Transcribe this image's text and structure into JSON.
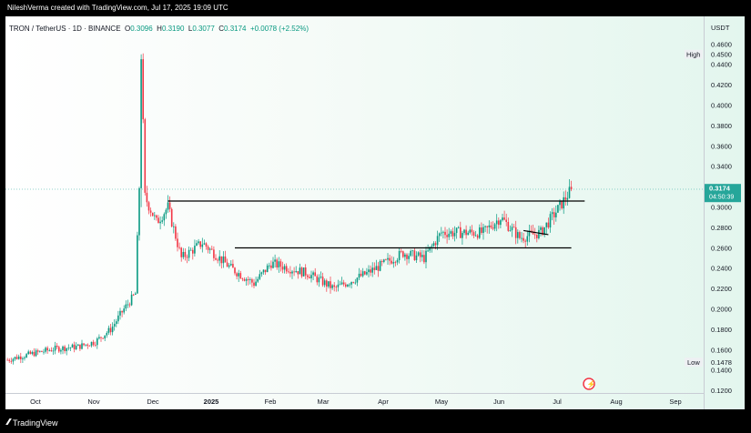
{
  "header": {
    "credit": "NileshVerma created with TradingView.com, Jul 17, 2025 19:09 UTC"
  },
  "legend": {
    "symbol": "TRON / TetherUS · 1D · BINANCE",
    "open_label": "O",
    "open": "0.3096",
    "high_label": "H",
    "high": "0.3190",
    "low_label": "L",
    "low": "0.3077",
    "close_label": "C",
    "close": "0.3174",
    "change": "+0.0078 (+2.52%)"
  },
  "price_axis": {
    "unit": "USDT",
    "ticks": [
      "0.4600",
      "0.4400",
      "0.4200",
      "0.4000",
      "0.3800",
      "0.3600",
      "0.3400",
      "0.3200",
      "0.3000",
      "0.2800",
      "0.2600",
      "0.2400",
      "0.2200",
      "0.2000",
      "0.1800",
      "0.1600",
      "0.1400",
      "0.1200"
    ],
    "high_label": "High",
    "high_value": "0.4500",
    "low_label": "Low",
    "low_value": "0.1478",
    "last_price": "0.3174",
    "countdown": "04:50:39"
  },
  "time_axis": {
    "ticks": [
      "Oct",
      "Nov",
      "Dec",
      "2025",
      "Feb",
      "Mar",
      "Apr",
      "May",
      "Jun",
      "Jul",
      "Aug",
      "Sep"
    ]
  },
  "footer": {
    "brand": "TradingView"
  },
  "colors": {
    "up": "#089981",
    "down": "#f23645",
    "accent": "#26a69a",
    "text": "#131722"
  },
  "chart_data": {
    "type": "candlestick",
    "title": "TRON / TetherUS · 1D · BINANCE",
    "ylabel": "USDT",
    "ylim": [
      0.12,
      0.465
    ],
    "x_categories": [
      "Oct",
      "Nov",
      "Dec",
      "2025",
      "Feb",
      "Mar",
      "Apr",
      "May",
      "Jun",
      "Jul",
      "Aug",
      "Sep"
    ],
    "price_path": [
      [
        "2024-09-25",
        0.15
      ],
      [
        "2024-10-01",
        0.153
      ],
      [
        "2024-10-10",
        0.157
      ],
      [
        "2024-10-20",
        0.161
      ],
      [
        "2024-11-01",
        0.163
      ],
      [
        "2024-11-10",
        0.168
      ],
      [
        "2024-11-18",
        0.18
      ],
      [
        "2024-11-25",
        0.2
      ],
      [
        "2024-12-01",
        0.215
      ],
      [
        "2024-12-03",
        0.32
      ],
      [
        "2024-12-04",
        0.45
      ],
      [
        "2024-12-06",
        0.31
      ],
      [
        "2024-12-12",
        0.285
      ],
      [
        "2024-12-18",
        0.3
      ],
      [
        "2024-12-25",
        0.25
      ],
      [
        "2025-01-05",
        0.265
      ],
      [
        "2025-01-20",
        0.24
      ],
      [
        "2025-02-01",
        0.225
      ],
      [
        "2025-02-10",
        0.245
      ],
      [
        "2025-03-01",
        0.235
      ],
      [
        "2025-03-15",
        0.22
      ],
      [
        "2025-04-01",
        0.235
      ],
      [
        "2025-04-20",
        0.255
      ],
      [
        "2025-05-01",
        0.25
      ],
      [
        "2025-05-10",
        0.275
      ],
      [
        "2025-06-01",
        0.275
      ],
      [
        "2025-06-10",
        0.29
      ],
      [
        "2025-06-20",
        0.27
      ],
      [
        "2025-07-01",
        0.275
      ],
      [
        "2025-07-10",
        0.298
      ],
      [
        "2025-07-17",
        0.3174
      ]
    ],
    "trendlines": [
      {
        "from": [
          "2024-12-18",
          0.306
        ],
        "to": [
          "2025-07-24",
          0.306
        ]
      },
      {
        "from": [
          "2025-01-22",
          0.26
        ],
        "to": [
          "2025-07-17",
          0.26
        ]
      },
      {
        "from": [
          "2025-06-22",
          0.277
        ],
        "to": [
          "2025-07-05",
          0.273
        ]
      }
    ],
    "last_close": 0.3174,
    "high": 0.45,
    "low": 0.1478
  }
}
